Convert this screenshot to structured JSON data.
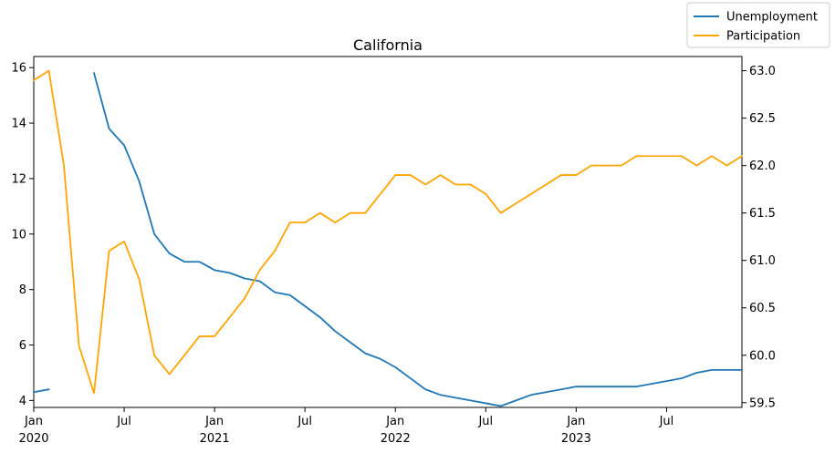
{
  "chart_data": {
    "type": "line",
    "title": "California",
    "x": [
      "2020-01",
      "2020-02",
      "2020-03",
      "2020-04",
      "2020-05",
      "2020-06",
      "2020-07",
      "2020-08",
      "2020-09",
      "2020-10",
      "2020-11",
      "2020-12",
      "2021-01",
      "2021-02",
      "2021-03",
      "2021-04",
      "2021-05",
      "2021-06",
      "2021-07",
      "2021-08",
      "2021-09",
      "2021-10",
      "2021-11",
      "2021-12",
      "2022-01",
      "2022-02",
      "2022-03",
      "2022-04",
      "2022-05",
      "2022-06",
      "2022-07",
      "2022-08",
      "2022-09",
      "2022-10",
      "2022-11",
      "2022-12",
      "2023-01",
      "2023-02",
      "2023-03",
      "2023-04",
      "2023-05",
      "2023-06",
      "2023-07",
      "2023-08",
      "2023-09",
      "2023-10",
      "2023-11",
      "2023-12"
    ],
    "x_ticks": [
      {
        "date": "2020-01",
        "label": "Jan",
        "year": "2020"
      },
      {
        "date": "2020-07",
        "label": "Jul",
        "year": ""
      },
      {
        "date": "2021-01",
        "label": "Jan",
        "year": "2021"
      },
      {
        "date": "2021-07",
        "label": "Jul",
        "year": ""
      },
      {
        "date": "2022-01",
        "label": "Jan",
        "year": "2022"
      },
      {
        "date": "2022-07",
        "label": "Jul",
        "year": ""
      },
      {
        "date": "2023-01",
        "label": "Jan",
        "year": "2023"
      },
      {
        "date": "2023-07",
        "label": "Jul",
        "year": ""
      }
    ],
    "y_left": {
      "ylim": [
        3.75,
        16.4
      ],
      "ticks": [
        4,
        6,
        8,
        10,
        12,
        14,
        16
      ]
    },
    "y_right": {
      "ylim": [
        59.45,
        63.15
      ],
      "ticks": [
        "59.5",
        "60.0",
        "60.5",
        "61.0",
        "61.5",
        "62.0",
        "62.5",
        "63.0"
      ]
    },
    "series": [
      {
        "name": "Unemployment",
        "axis": "left",
        "color": "#1f77b4",
        "values": [
          4.3,
          4.4,
          null,
          null,
          15.8,
          13.8,
          13.2,
          11.9,
          10.0,
          9.3,
          9.0,
          9.0,
          8.7,
          8.6,
          8.4,
          8.3,
          7.9,
          7.8,
          7.4,
          7.0,
          6.5,
          6.1,
          5.7,
          5.5,
          5.2,
          4.8,
          4.4,
          4.2,
          4.1,
          4.0,
          3.9,
          3.8,
          4.0,
          4.2,
          4.3,
          4.4,
          4.5,
          4.5,
          4.5,
          4.5,
          4.5,
          4.6,
          4.7,
          4.8,
          5.0,
          5.1,
          5.1,
          5.1
        ]
      },
      {
        "name": "Participation",
        "axis": "right",
        "color": "#ffa500",
        "values": [
          62.9,
          63.0,
          62.0,
          60.1,
          59.6,
          61.1,
          61.2,
          60.8,
          60.0,
          59.8,
          60.0,
          60.2,
          60.2,
          60.4,
          60.6,
          60.9,
          61.1,
          61.4,
          61.4,
          61.5,
          61.4,
          61.5,
          61.5,
          61.7,
          61.9,
          61.9,
          61.8,
          61.9,
          61.8,
          61.8,
          61.7,
          61.5,
          61.6,
          61.7,
          61.8,
          61.9,
          61.9,
          62.0,
          62.0,
          62.0,
          62.1,
          62.1,
          62.1,
          62.1,
          62.0,
          62.1,
          62.0,
          62.1
        ]
      }
    ],
    "legend": {
      "placement": "top-right",
      "entries": [
        "Unemployment",
        "Participation"
      ]
    },
    "grid": false
  }
}
